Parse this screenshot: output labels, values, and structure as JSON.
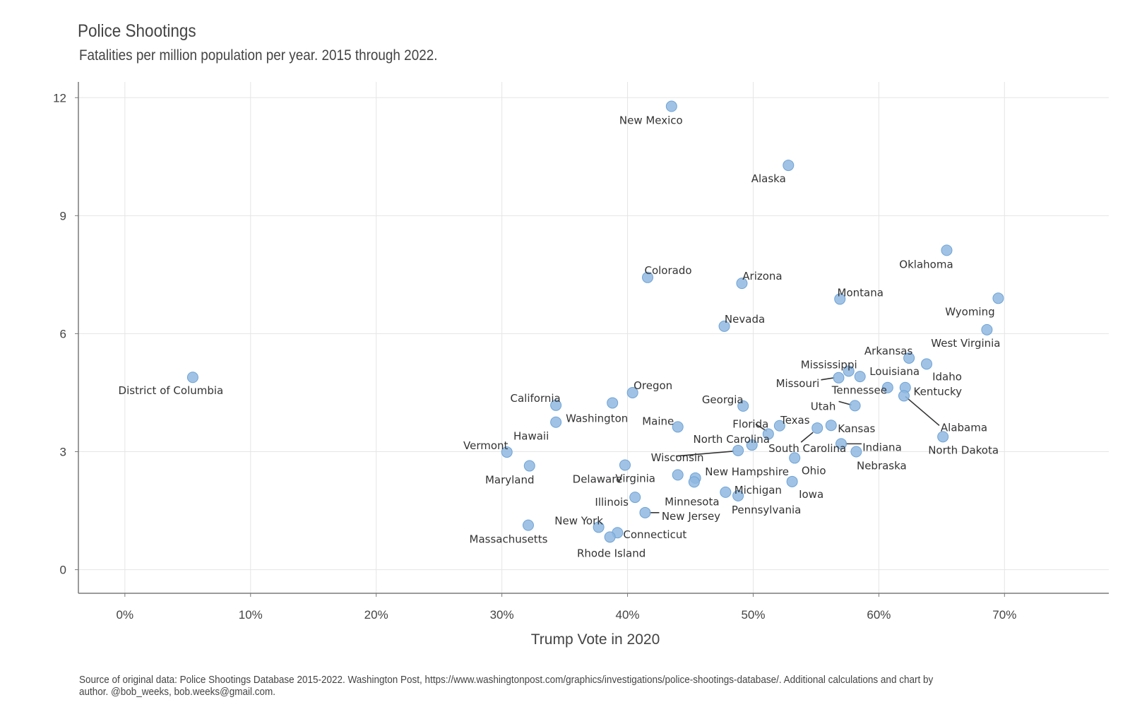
{
  "title": "Police Shootings",
  "subtitle": "Fatalities per million population per year. 2015 through 2022.",
  "caption": "Source of original data: Police Shootings Database 2015-2022. Washington Post, https://www.washingtonpost.com/graphics/investigations/police-shootings-database/. Additional calculations and chart by author. @bob_weeks, bob.weeks@gmail.com.",
  "colors": {
    "point_fill": "#8fb8e0",
    "point_stroke": "#6fa3d6",
    "grid": "#e5e5e5",
    "axis": "#7a7a7a",
    "leader": "#333333"
  },
  "chart_data": {
    "type": "scatter",
    "xlabel": "Trump Vote in 2020",
    "ylabel": "",
    "xlim": [
      -3.7,
      78.3
    ],
    "ylim": [
      -0.6,
      12.4
    ],
    "x_ticks": [
      0,
      10,
      20,
      30,
      40,
      50,
      60,
      70
    ],
    "x_tick_labels": [
      "0%",
      "10%",
      "20%",
      "30%",
      "40%",
      "50%",
      "60%",
      "70%"
    ],
    "y_ticks": [
      0,
      3,
      6,
      9,
      12
    ],
    "y_tick_labels": [
      "0",
      "3",
      "6",
      "9",
      "12"
    ],
    "grid": true,
    "legend": "none",
    "points": [
      {
        "label": "New Mexico",
        "x": 43.5,
        "y": 11.78
      },
      {
        "label": "Alaska",
        "x": 52.8,
        "y": 10.28
      },
      {
        "label": "Oklahoma",
        "x": 65.4,
        "y": 8.12
      },
      {
        "label": "Colorado",
        "x": 41.6,
        "y": 7.43
      },
      {
        "label": "Arizona",
        "x": 49.1,
        "y": 7.28
      },
      {
        "label": "Montana",
        "x": 56.9,
        "y": 6.88
      },
      {
        "label": "Wyoming",
        "x": 69.5,
        "y": 6.9
      },
      {
        "label": "Nevada",
        "x": 47.7,
        "y": 6.19
      },
      {
        "label": "West Virginia",
        "x": 68.6,
        "y": 6.1
      },
      {
        "label": "Arkansas",
        "x": 62.4,
        "y": 5.38
      },
      {
        "label": "Idaho",
        "x": 63.8,
        "y": 5.23
      },
      {
        "label": "Mississippi",
        "x": 57.6,
        "y": 5.05
      },
      {
        "label": "Louisiana",
        "x": 58.5,
        "y": 4.91
      },
      {
        "label": "Missouri",
        "x": 56.8,
        "y": 4.88
      },
      {
        "label": "District of Columbia",
        "x": 5.4,
        "y": 4.89
      },
      {
        "label": "Tennessee",
        "x": 60.7,
        "y": 4.63
      },
      {
        "label": "Kentucky",
        "x": 62.1,
        "y": 4.63
      },
      {
        "label": "Oregon",
        "x": 40.4,
        "y": 4.5
      },
      {
        "label": "Alabama",
        "x": 62.0,
        "y": 4.42
      },
      {
        "label": "Washington",
        "x": 38.8,
        "y": 4.24
      },
      {
        "label": "California",
        "x": 34.3,
        "y": 4.18
      },
      {
        "label": "Georgia",
        "x": 49.2,
        "y": 4.16
      },
      {
        "label": "Utah",
        "x": 58.1,
        "y": 4.17
      },
      {
        "label": "Hawaii",
        "x": 34.3,
        "y": 3.75
      },
      {
        "label": "Texas",
        "x": 52.1,
        "y": 3.66
      },
      {
        "label": "Kansas",
        "x": 56.2,
        "y": 3.67
      },
      {
        "label": "Maine",
        "x": 44.0,
        "y": 3.63
      },
      {
        "label": "South Carolina",
        "x": 55.1,
        "y": 3.6
      },
      {
        "label": "Florida",
        "x": 51.2,
        "y": 3.45
      },
      {
        "label": "North Dakota",
        "x": 65.1,
        "y": 3.38
      },
      {
        "label": "North Carolina",
        "x": 49.9,
        "y": 3.17
      },
      {
        "label": "Indiana",
        "x": 57.0,
        "y": 3.2
      },
      {
        "label": "Wisconsin",
        "x": 48.8,
        "y": 3.03
      },
      {
        "label": "Nebraska",
        "x": 58.2,
        "y": 3.0
      },
      {
        "label": "Vermont",
        "x": 30.4,
        "y": 2.99
      },
      {
        "label": "Ohio",
        "x": 53.3,
        "y": 2.84
      },
      {
        "label": "Delaware",
        "x": 39.8,
        "y": 2.66
      },
      {
        "label": "Maryland",
        "x": 32.2,
        "y": 2.64
      },
      {
        "label": "Virginia",
        "x": 44.0,
        "y": 2.41
      },
      {
        "label": "New Hampshire",
        "x": 45.4,
        "y": 2.33
      },
      {
        "label": "Minnesota",
        "x": 45.3,
        "y": 2.23
      },
      {
        "label": "Iowa",
        "x": 53.1,
        "y": 2.24
      },
      {
        "label": "Michigan",
        "x": 47.8,
        "y": 1.97
      },
      {
        "label": "Pennsylvania",
        "x": 48.8,
        "y": 1.88
      },
      {
        "label": "Illinois",
        "x": 40.6,
        "y": 1.84
      },
      {
        "label": "New Jersey",
        "x": 41.4,
        "y": 1.45
      },
      {
        "label": "Massachusetts",
        "x": 32.1,
        "y": 1.13
      },
      {
        "label": "New York",
        "x": 37.7,
        "y": 1.08
      },
      {
        "label": "Connecticut",
        "x": 39.2,
        "y": 0.94
      },
      {
        "label": "Rhode Island",
        "x": 38.6,
        "y": 0.83
      }
    ]
  }
}
